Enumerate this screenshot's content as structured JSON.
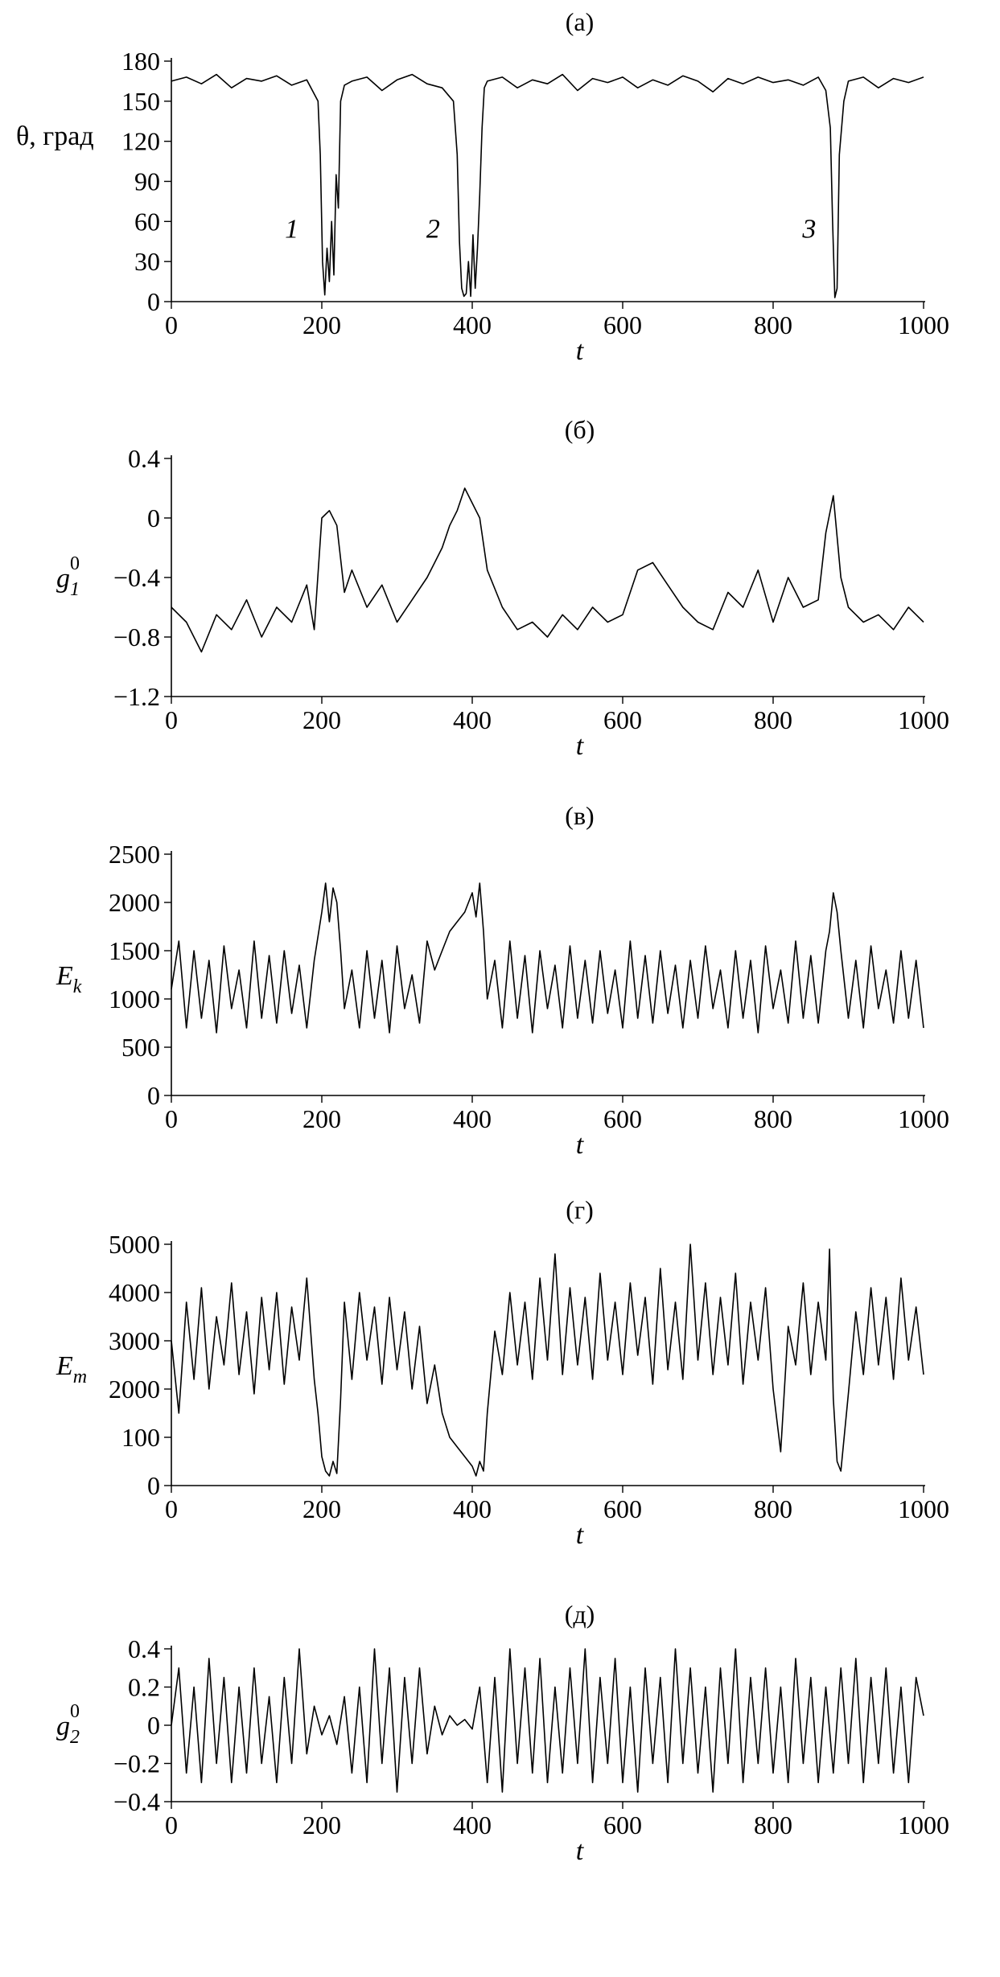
{
  "chart_data": [
    {
      "type": "line",
      "panel_label": "(а)",
      "xlabel": "t",
      "ylabel": "θ, град",
      "xlim": [
        0,
        1000
      ],
      "ylim": [
        0,
        180
      ],
      "xticks": [
        "0",
        "200",
        "400",
        "600",
        "800",
        "1000"
      ],
      "yticks": [
        "0",
        "30",
        "60",
        "90",
        "120",
        "150",
        "180"
      ],
      "annotations": [
        {
          "text": "1",
          "x": 160,
          "y": 48
        },
        {
          "text": "2",
          "x": 348,
          "y": 48
        },
        {
          "text": "3",
          "x": 848,
          "y": 48
        }
      ],
      "x": [
        0,
        20,
        40,
        60,
        80,
        100,
        120,
        140,
        160,
        180,
        195,
        198,
        201,
        204,
        207,
        210,
        213,
        216,
        219,
        222,
        225,
        230,
        240,
        260,
        280,
        300,
        320,
        340,
        360,
        375,
        380,
        383,
        386,
        389,
        392,
        395,
        398,
        401,
        404,
        407,
        410,
        413,
        416,
        420,
        440,
        460,
        480,
        500,
        520,
        540,
        560,
        580,
        600,
        620,
        640,
        660,
        680,
        700,
        720,
        740,
        760,
        780,
        800,
        820,
        840,
        860,
        870,
        876,
        879,
        882,
        885,
        888,
        894,
        900,
        920,
        940,
        960,
        980,
        1000
      ],
      "values": [
        165,
        168,
        163,
        170,
        160,
        167,
        165,
        169,
        162,
        166,
        150,
        110,
        30,
        5,
        40,
        15,
        60,
        20,
        95,
        70,
        150,
        162,
        165,
        168,
        158,
        166,
        170,
        163,
        160,
        150,
        110,
        45,
        10,
        4,
        6,
        30,
        4,
        50,
        10,
        40,
        80,
        130,
        160,
        165,
        168,
        160,
        166,
        163,
        170,
        158,
        167,
        164,
        168,
        160,
        166,
        162,
        169,
        165,
        157,
        167,
        163,
        168,
        164,
        166,
        162,
        168,
        158,
        130,
        60,
        3,
        10,
        110,
        150,
        165,
        168,
        160,
        167,
        164,
        168
      ]
    },
    {
      "type": "line",
      "panel_label": "(б)",
      "xlabel": "t",
      "ylabel": "g10",
      "xlim": [
        0,
        1000
      ],
      "ylim": [
        -1.2,
        0.4
      ],
      "xticks": [
        "0",
        "200",
        "400",
        "600",
        "800",
        "1000"
      ],
      "yticks": [
        "0.4",
        "0",
        "−0.4",
        "−0.8",
        "−1.2"
      ],
      "x": [
        0,
        20,
        40,
        60,
        80,
        100,
        120,
        140,
        160,
        180,
        190,
        200,
        210,
        220,
        230,
        240,
        260,
        280,
        300,
        320,
        340,
        350,
        360,
        370,
        380,
        390,
        400,
        410,
        420,
        440,
        460,
        480,
        500,
        520,
        540,
        560,
        580,
        600,
        620,
        640,
        660,
        680,
        700,
        720,
        740,
        760,
        780,
        800,
        820,
        840,
        860,
        870,
        880,
        890,
        900,
        920,
        940,
        960,
        980,
        1000
      ],
      "values": [
        -0.6,
        -0.7,
        -0.9,
        -0.65,
        -0.75,
        -0.55,
        -0.8,
        -0.6,
        -0.7,
        -0.45,
        -0.75,
        0.0,
        0.05,
        -0.05,
        -0.5,
        -0.35,
        -0.6,
        -0.45,
        -0.7,
        -0.55,
        -0.4,
        -0.3,
        -0.2,
        -0.05,
        0.05,
        0.2,
        0.1,
        0.0,
        -0.35,
        -0.6,
        -0.75,
        -0.7,
        -0.8,
        -0.65,
        -0.75,
        -0.6,
        -0.7,
        -0.65,
        -0.35,
        -0.3,
        -0.45,
        -0.6,
        -0.7,
        -0.75,
        -0.5,
        -0.6,
        -0.35,
        -0.7,
        -0.4,
        -0.6,
        -0.55,
        -0.1,
        0.15,
        -0.4,
        -0.6,
        -0.7,
        -0.65,
        -0.75,
        -0.6,
        -0.7
      ]
    },
    {
      "type": "line",
      "panel_label": "(в)",
      "xlabel": "t",
      "ylabel": "Ek",
      "xlim": [
        0,
        1000
      ],
      "ylim": [
        0,
        2500
      ],
      "xticks": [
        "0",
        "200",
        "400",
        "600",
        "800",
        "1000"
      ],
      "yticks": [
        "0",
        "500",
        "1000",
        "1500",
        "2000",
        "2500"
      ],
      "x": [
        0,
        10,
        20,
        30,
        40,
        50,
        60,
        70,
        80,
        90,
        100,
        110,
        120,
        130,
        140,
        150,
        160,
        170,
        180,
        190,
        200,
        205,
        210,
        215,
        220,
        225,
        230,
        240,
        250,
        260,
        270,
        280,
        290,
        300,
        310,
        320,
        330,
        340,
        350,
        360,
        370,
        380,
        390,
        400,
        405,
        410,
        415,
        420,
        430,
        440,
        450,
        460,
        470,
        480,
        490,
        500,
        510,
        520,
        530,
        540,
        550,
        560,
        570,
        580,
        590,
        600,
        610,
        620,
        630,
        640,
        650,
        660,
        670,
        680,
        690,
        700,
        710,
        720,
        730,
        740,
        750,
        760,
        770,
        780,
        790,
        800,
        810,
        820,
        830,
        840,
        850,
        860,
        870,
        875,
        880,
        885,
        890,
        900,
        910,
        920,
        930,
        940,
        950,
        960,
        970,
        980,
        990,
        1000
      ],
      "values": [
        1100,
        1600,
        700,
        1500,
        800,
        1400,
        650,
        1550,
        900,
        1300,
        700,
        1600,
        800,
        1450,
        750,
        1500,
        850,
        1350,
        700,
        1400,
        1900,
        2200,
        1800,
        2150,
        2000,
        1500,
        900,
        1300,
        700,
        1500,
        800,
        1400,
        650,
        1550,
        900,
        1250,
        750,
        1600,
        1300,
        1500,
        1700,
        1800,
        1900,
        2100,
        1850,
        2200,
        1700,
        1000,
        1400,
        700,
        1600,
        800,
        1450,
        650,
        1500,
        900,
        1350,
        700,
        1550,
        800,
        1400,
        750,
        1500,
        850,
        1300,
        700,
        1600,
        800,
        1450,
        750,
        1500,
        850,
        1350,
        700,
        1400,
        800,
        1550,
        900,
        1300,
        700,
        1500,
        800,
        1400,
        650,
        1550,
        900,
        1300,
        750,
        1600,
        800,
        1450,
        750,
        1500,
        1700,
        2100,
        1900,
        1500,
        800,
        1400,
        700,
        1550,
        900,
        1300,
        750,
        1500,
        800,
        1400,
        700
      ]
    },
    {
      "type": "line",
      "panel_label": "(г)",
      "xlabel": "t",
      "ylabel": "Em",
      "xlim": [
        0,
        1000
      ],
      "ylim": [
        0,
        5000
      ],
      "xticks": [
        "0",
        "200",
        "400",
        "600",
        "800",
        "1000"
      ],
      "yticks": [
        "0",
        "100",
        "2000",
        "3000",
        "4000",
        "5000"
      ],
      "x": [
        0,
        10,
        20,
        30,
        40,
        50,
        60,
        70,
        80,
        90,
        100,
        110,
        120,
        130,
        140,
        150,
        160,
        170,
        180,
        190,
        195,
        200,
        205,
        210,
        215,
        220,
        225,
        230,
        240,
        250,
        260,
        270,
        280,
        290,
        300,
        310,
        320,
        330,
        340,
        350,
        360,
        370,
        380,
        390,
        400,
        405,
        410,
        415,
        420,
        430,
        440,
        450,
        460,
        470,
        480,
        490,
        500,
        510,
        520,
        530,
        540,
        550,
        560,
        570,
        580,
        590,
        600,
        610,
        620,
        630,
        640,
        650,
        660,
        670,
        680,
        690,
        700,
        710,
        720,
        730,
        740,
        750,
        760,
        770,
        780,
        790,
        800,
        810,
        820,
        830,
        840,
        850,
        860,
        870,
        875,
        880,
        885,
        890,
        900,
        910,
        920,
        930,
        940,
        950,
        960,
        970,
        980,
        990,
        1000
      ],
      "values": [
        3000,
        1500,
        3800,
        2200,
        4100,
        2000,
        3500,
        2500,
        4200,
        2300,
        3600,
        1900,
        3900,
        2400,
        4000,
        2100,
        3700,
        2600,
        4300,
        2200,
        1500,
        600,
        300,
        200,
        500,
        250,
        1800,
        3800,
        2200,
        4000,
        2600,
        3700,
        2100,
        3900,
        2400,
        3600,
        2000,
        3300,
        1700,
        2500,
        1500,
        1000,
        800,
        600,
        400,
        200,
        500,
        300,
        1500,
        3200,
        2300,
        4000,
        2500,
        3800,
        2200,
        4300,
        2600,
        4800,
        2300,
        4100,
        2500,
        3900,
        2200,
        4400,
        2600,
        3800,
        2300,
        4200,
        2700,
        3900,
        2100,
        4500,
        2400,
        3800,
        2200,
        5000,
        2600,
        4200,
        2300,
        3900,
        2500,
        4400,
        2100,
        3800,
        2600,
        4100,
        2000,
        700,
        3300,
        2500,
        4200,
        2300,
        3800,
        2600,
        4900,
        1800,
        500,
        300,
        1900,
        3600,
        2300,
        4100,
        2500,
        3900,
        2200,
        4300,
        2600,
        3700,
        2300
      ]
    },
    {
      "type": "line",
      "panel_label": "(д)",
      "xlabel": "t",
      "ylabel": "g20",
      "xlim": [
        0,
        1000
      ],
      "ylim": [
        -0.4,
        0.4
      ],
      "xticks": [
        "0",
        "200",
        "400",
        "600",
        "800",
        "1000"
      ],
      "yticks": [
        "0.4",
        "0.2",
        "0",
        "−0.2",
        "−0.4"
      ],
      "x": [
        0,
        10,
        20,
        30,
        40,
        50,
        60,
        70,
        80,
        90,
        100,
        110,
        120,
        130,
        140,
        150,
        160,
        170,
        180,
        190,
        200,
        210,
        220,
        230,
        240,
        250,
        260,
        270,
        280,
        290,
        300,
        310,
        320,
        330,
        340,
        350,
        360,
        370,
        380,
        390,
        400,
        410,
        420,
        430,
        440,
        450,
        460,
        470,
        480,
        490,
        500,
        510,
        520,
        530,
        540,
        550,
        560,
        570,
        580,
        590,
        600,
        610,
        620,
        630,
        640,
        650,
        660,
        670,
        680,
        690,
        700,
        710,
        720,
        730,
        740,
        750,
        760,
        770,
        780,
        790,
        800,
        810,
        820,
        830,
        840,
        850,
        860,
        870,
        880,
        890,
        900,
        910,
        920,
        930,
        940,
        950,
        960,
        970,
        980,
        990,
        1000
      ],
      "values": [
        0.0,
        0.3,
        -0.25,
        0.2,
        -0.3,
        0.35,
        -0.2,
        0.25,
        -0.3,
        0.2,
        -0.25,
        0.3,
        -0.2,
        0.15,
        -0.3,
        0.25,
        -0.2,
        0.4,
        -0.15,
        0.1,
        -0.05,
        0.05,
        -0.1,
        0.15,
        -0.25,
        0.2,
        -0.3,
        0.4,
        -0.2,
        0.3,
        -0.35,
        0.25,
        -0.2,
        0.3,
        -0.15,
        0.1,
        -0.05,
        0.05,
        0.0,
        0.03,
        -0.02,
        0.2,
        -0.3,
        0.25,
        -0.35,
        0.4,
        -0.2,
        0.3,
        -0.25,
        0.35,
        -0.3,
        0.2,
        -0.25,
        0.3,
        -0.2,
        0.4,
        -0.3,
        0.25,
        -0.2,
        0.35,
        -0.3,
        0.2,
        -0.35,
        0.3,
        -0.2,
        0.25,
        -0.3,
        0.4,
        -0.2,
        0.3,
        -0.25,
        0.2,
        -0.35,
        0.3,
        -0.2,
        0.4,
        -0.3,
        0.25,
        -0.2,
        0.3,
        -0.25,
        0.2,
        -0.3,
        0.35,
        -0.2,
        0.25,
        -0.3,
        0.2,
        -0.25,
        0.3,
        -0.2,
        0.35,
        -0.3,
        0.25,
        -0.2,
        0.3,
        -0.25,
        0.2,
        -0.3,
        0.25,
        0.05
      ]
    }
  ]
}
